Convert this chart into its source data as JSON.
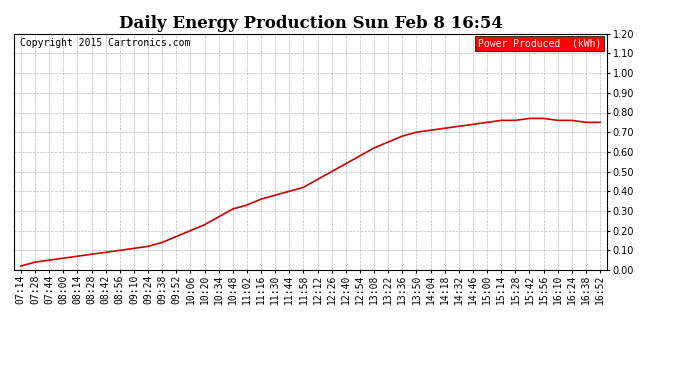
{
  "title": "Daily Energy Production Sun Feb 8 16:54",
  "copyright_text": "Copyright 2015 Cartronics.com",
  "legend_label": "Power Produced  (kWh)",
  "legend_bg_color": "#ff0000",
  "legend_text_color": "#ffffff",
  "line_color": "#cc0000",
  "background_color": "#ffffff",
  "plot_bg_color": "#ffffff",
  "grid_color": "#bbbbbb",
  "ylim": [
    0.0,
    1.2
  ],
  "yticks": [
    0.0,
    0.1,
    0.2,
    0.3,
    0.4,
    0.5,
    0.6,
    0.7,
    0.8,
    0.9,
    1.0,
    1.1,
    1.2
  ],
  "x_labels": [
    "07:14",
    "07:28",
    "07:44",
    "08:00",
    "08:14",
    "08:28",
    "08:42",
    "08:56",
    "09:10",
    "09:24",
    "09:38",
    "09:52",
    "10:06",
    "10:20",
    "10:34",
    "10:48",
    "11:02",
    "11:16",
    "11:30",
    "11:44",
    "11:58",
    "12:12",
    "12:26",
    "12:40",
    "12:54",
    "13:08",
    "13:22",
    "13:36",
    "13:50",
    "14:04",
    "14:18",
    "14:32",
    "14:46",
    "15:00",
    "15:14",
    "15:28",
    "15:42",
    "15:56",
    "16:10",
    "16:24",
    "16:38",
    "16:52"
  ],
  "y_values": [
    0.02,
    0.04,
    0.05,
    0.06,
    0.07,
    0.08,
    0.09,
    0.1,
    0.11,
    0.12,
    0.14,
    0.17,
    0.2,
    0.23,
    0.27,
    0.31,
    0.33,
    0.36,
    0.38,
    0.4,
    0.42,
    0.46,
    0.5,
    0.54,
    0.58,
    0.62,
    0.65,
    0.68,
    0.7,
    0.71,
    0.72,
    0.73,
    0.74,
    0.75,
    0.76,
    0.76,
    0.77,
    0.77,
    0.76,
    0.76,
    0.75,
    0.75
  ],
  "title_fontsize": 12,
  "tick_fontsize": 7,
  "copyright_fontsize": 7,
  "legend_fontsize": 7,
  "line_width": 1.2
}
